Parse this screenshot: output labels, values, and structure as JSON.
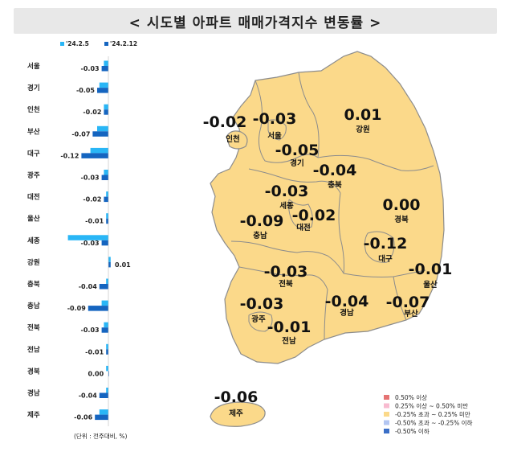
{
  "title": "< 시도별 아파트 매매가격지수 변동률 >",
  "unit_note": "(단위 : 전주대비, %)",
  "chart_data": {
    "type": "bar",
    "orientation": "horizontal",
    "series": [
      {
        "name": "'24.2.5",
        "color": "#29b6f6",
        "values": [
          -0.02,
          -0.04,
          -0.02,
          -0.05,
          -0.08,
          -0.02,
          -0.01,
          -0.01,
          -0.18,
          0.01,
          -0.01,
          -0.03,
          -0.02,
          -0.01,
          -0.01,
          -0.01,
          -0.04
        ]
      },
      {
        "name": "'24.2.12",
        "color": "#1565c0",
        "values": [
          -0.03,
          -0.05,
          -0.02,
          -0.07,
          -0.12,
          -0.03,
          -0.02,
          -0.01,
          -0.03,
          0.01,
          -0.04,
          -0.09,
          -0.03,
          -0.01,
          0.0,
          -0.04,
          -0.06
        ]
      }
    ],
    "categories": [
      "서울",
      "경기",
      "인천",
      "부산",
      "대구",
      "광주",
      "대전",
      "울산",
      "세종",
      "강원",
      "충북",
      "충남",
      "전북",
      "전남",
      "경북",
      "경남",
      "제주"
    ],
    "value_labels": [
      "-0.03",
      "-0.05",
      "-0.02",
      "-0.07",
      "-0.12",
      "-0.03",
      "-0.02",
      "-0.01",
      "-0.03",
      "0.01",
      "-0.04",
      "-0.09",
      "-0.03",
      "-0.01",
      "0.00",
      "-0.04",
      "-0.06"
    ]
  },
  "map": {
    "regions": [
      {
        "name": "인천",
        "value": "-0.02"
      },
      {
        "name": "서울",
        "value": "-0.03"
      },
      {
        "name": "경기",
        "value": "-0.05"
      },
      {
        "name": "강원",
        "value": "0.01"
      },
      {
        "name": "충북",
        "value": "-0.04"
      },
      {
        "name": "세종",
        "value": "-0.03"
      },
      {
        "name": "대전",
        "value": "-0.02"
      },
      {
        "name": "충남",
        "value": "-0.09"
      },
      {
        "name": "경북",
        "value": "0.00"
      },
      {
        "name": "대구",
        "value": "-0.12"
      },
      {
        "name": "울산",
        "value": "-0.01"
      },
      {
        "name": "전북",
        "value": "-0.03"
      },
      {
        "name": "광주",
        "value": "-0.03"
      },
      {
        "name": "경남",
        "value": "-0.04"
      },
      {
        "name": "부산",
        "value": "-0.07"
      },
      {
        "name": "전남",
        "value": "-0.01"
      },
      {
        "name": "제주",
        "value": "-0.06"
      }
    ],
    "fill_color": "#fbd98a",
    "border_color": "#8c8c8c"
  },
  "legend": [
    {
      "label": "0.50% 이상",
      "color": "#e57373"
    },
    {
      "label": "0.25% 이상 ~ 0.50% 미만",
      "color": "#f8bbd0"
    },
    {
      "label": "-0.25% 초과 ~ 0.25% 미만",
      "color": "#fbd98a"
    },
    {
      "label": "-0.50% 초과 ~ -0.25% 이하",
      "color": "#b3c6f2"
    },
    {
      "label": "-0.50% 이하",
      "color": "#3b6fc7"
    }
  ]
}
